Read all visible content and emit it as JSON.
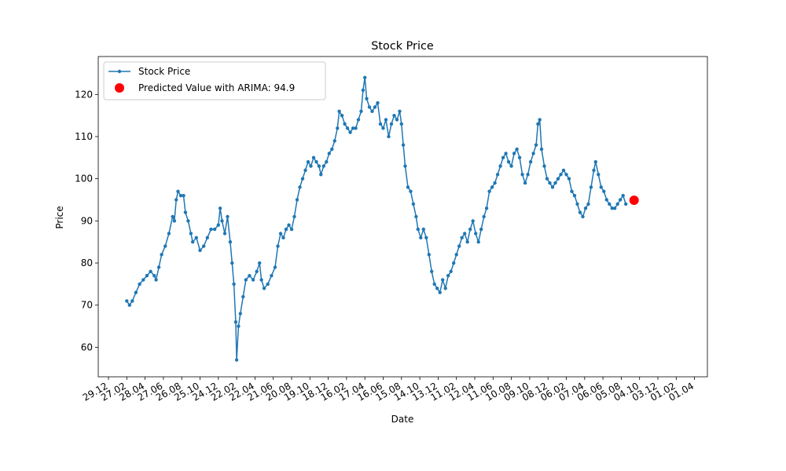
{
  "chart_data": {
    "type": "line",
    "title": "Stock Price",
    "xlabel": "Date",
    "ylabel": "Price",
    "ylim": [
      53,
      129
    ],
    "yticks": [
      60,
      70,
      80,
      90,
      100,
      110,
      120
    ],
    "xtick_labels": [
      "29.12",
      "27.02",
      "28.04",
      "27.06",
      "26.08",
      "25.10",
      "24.12",
      "22.02",
      "22.04",
      "21.06",
      "20.08",
      "19.10",
      "18.12",
      "16.02",
      "17.04",
      "16.06",
      "15.08",
      "14.10",
      "13.12",
      "11.02",
      "12.04",
      "11.06",
      "10.08",
      "09.10",
      "08.12",
      "06.02",
      "07.04",
      "06.06",
      "05.08",
      "04.10",
      "03.12",
      "01.02",
      "01.04"
    ],
    "legend": {
      "placement": "top-left",
      "entries": [
        "Stock Price",
        "Predicted Value with ARIMA: 94.9"
      ]
    },
    "colors": {
      "series": "#1f77b4",
      "prediction": "#ff0000"
    },
    "series": [
      {
        "name": "Stock Price",
        "points": [
          [
            1.0,
            71
          ],
          [
            1.15,
            70
          ],
          [
            1.3,
            71
          ],
          [
            1.5,
            73
          ],
          [
            1.7,
            75
          ],
          [
            1.9,
            76
          ],
          [
            2.1,
            77
          ],
          [
            2.3,
            78
          ],
          [
            2.5,
            77
          ],
          [
            2.6,
            76
          ],
          [
            2.75,
            79
          ],
          [
            2.9,
            82
          ],
          [
            3.1,
            84
          ],
          [
            3.3,
            87
          ],
          [
            3.5,
            91
          ],
          [
            3.6,
            90
          ],
          [
            3.7,
            95
          ],
          [
            3.8,
            97
          ],
          [
            3.95,
            96
          ],
          [
            4.1,
            96
          ],
          [
            4.2,
            92
          ],
          [
            4.35,
            90
          ],
          [
            4.5,
            87
          ],
          [
            4.6,
            85
          ],
          [
            4.8,
            86
          ],
          [
            5.0,
            83
          ],
          [
            5.2,
            84
          ],
          [
            5.4,
            86
          ],
          [
            5.6,
            88
          ],
          [
            5.8,
            88
          ],
          [
            6.0,
            89
          ],
          [
            6.1,
            93
          ],
          [
            6.2,
            90
          ],
          [
            6.35,
            87
          ],
          [
            6.5,
            91
          ],
          [
            6.65,
            85
          ],
          [
            6.75,
            80
          ],
          [
            6.85,
            75
          ],
          [
            6.95,
            66
          ],
          [
            7.0,
            57
          ],
          [
            7.1,
            65
          ],
          [
            7.2,
            68
          ],
          [
            7.35,
            72
          ],
          [
            7.5,
            76
          ],
          [
            7.7,
            77
          ],
          [
            7.9,
            76
          ],
          [
            8.1,
            78
          ],
          [
            8.25,
            80
          ],
          [
            8.35,
            76
          ],
          [
            8.5,
            74
          ],
          [
            8.7,
            75
          ],
          [
            8.9,
            77
          ],
          [
            9.1,
            79
          ],
          [
            9.25,
            84
          ],
          [
            9.4,
            87
          ],
          [
            9.55,
            86
          ],
          [
            9.7,
            88
          ],
          [
            9.85,
            89
          ],
          [
            10.0,
            88
          ],
          [
            10.15,
            91
          ],
          [
            10.3,
            95
          ],
          [
            10.45,
            98
          ],
          [
            10.6,
            100
          ],
          [
            10.75,
            102
          ],
          [
            10.9,
            104
          ],
          [
            11.05,
            103
          ],
          [
            11.2,
            105
          ],
          [
            11.35,
            104
          ],
          [
            11.5,
            103
          ],
          [
            11.6,
            101
          ],
          [
            11.75,
            103
          ],
          [
            11.9,
            104
          ],
          [
            12.05,
            106
          ],
          [
            12.2,
            107
          ],
          [
            12.35,
            109
          ],
          [
            12.5,
            112
          ],
          [
            12.6,
            116
          ],
          [
            12.75,
            115
          ],
          [
            12.9,
            113
          ],
          [
            13.05,
            112
          ],
          [
            13.2,
            111
          ],
          [
            13.35,
            112
          ],
          [
            13.5,
            112
          ],
          [
            13.65,
            114
          ],
          [
            13.8,
            116
          ],
          [
            13.9,
            121
          ],
          [
            14.0,
            124
          ],
          [
            14.1,
            119
          ],
          [
            14.25,
            117
          ],
          [
            14.4,
            116
          ],
          [
            14.55,
            117
          ],
          [
            14.7,
            118
          ],
          [
            14.85,
            113
          ],
          [
            15.0,
            112
          ],
          [
            15.15,
            114
          ],
          [
            15.3,
            110
          ],
          [
            15.45,
            113
          ],
          [
            15.6,
            115
          ],
          [
            15.75,
            114
          ],
          [
            15.9,
            116
          ],
          [
            16.0,
            113
          ],
          [
            16.1,
            108
          ],
          [
            16.2,
            103
          ],
          [
            16.35,
            98
          ],
          [
            16.5,
            97
          ],
          [
            16.65,
            94
          ],
          [
            16.8,
            91
          ],
          [
            16.9,
            88
          ],
          [
            17.05,
            86
          ],
          [
            17.2,
            88
          ],
          [
            17.35,
            86
          ],
          [
            17.5,
            82
          ],
          [
            17.65,
            78
          ],
          [
            17.8,
            75
          ],
          [
            17.95,
            74
          ],
          [
            18.1,
            73
          ],
          [
            18.25,
            76
          ],
          [
            18.4,
            74
          ],
          [
            18.55,
            77
          ],
          [
            18.7,
            78
          ],
          [
            18.85,
            80
          ],
          [
            19.0,
            82
          ],
          [
            19.15,
            84
          ],
          [
            19.3,
            86
          ],
          [
            19.45,
            87
          ],
          [
            19.6,
            85
          ],
          [
            19.75,
            88
          ],
          [
            19.9,
            90
          ],
          [
            20.05,
            87
          ],
          [
            20.2,
            85
          ],
          [
            20.35,
            88
          ],
          [
            20.5,
            91
          ],
          [
            20.65,
            93
          ],
          [
            20.8,
            97
          ],
          [
            20.95,
            98
          ],
          [
            21.1,
            99
          ],
          [
            21.25,
            101
          ],
          [
            21.4,
            103
          ],
          [
            21.55,
            105
          ],
          [
            21.7,
            106
          ],
          [
            21.85,
            104
          ],
          [
            22.0,
            103
          ],
          [
            22.15,
            106
          ],
          [
            22.3,
            107
          ],
          [
            22.45,
            105
          ],
          [
            22.6,
            101
          ],
          [
            22.75,
            99
          ],
          [
            22.9,
            101
          ],
          [
            23.05,
            104
          ],
          [
            23.2,
            106
          ],
          [
            23.35,
            108
          ],
          [
            23.45,
            113
          ],
          [
            23.55,
            114
          ],
          [
            23.65,
            107
          ],
          [
            23.8,
            103
          ],
          [
            23.95,
            100
          ],
          [
            24.1,
            99
          ],
          [
            24.25,
            98
          ],
          [
            24.4,
            99
          ],
          [
            24.55,
            100
          ],
          [
            24.7,
            101
          ],
          [
            24.85,
            102
          ],
          [
            25.0,
            101
          ],
          [
            25.15,
            100
          ],
          [
            25.3,
            97
          ],
          [
            25.45,
            96
          ],
          [
            25.6,
            94
          ],
          [
            25.75,
            92
          ],
          [
            25.9,
            91
          ],
          [
            26.05,
            93
          ],
          [
            26.2,
            94
          ],
          [
            26.35,
            98
          ],
          [
            26.5,
            102
          ],
          [
            26.6,
            104
          ],
          [
            26.75,
            101
          ],
          [
            26.9,
            98
          ],
          [
            27.05,
            97
          ],
          [
            27.2,
            95
          ],
          [
            27.35,
            94
          ],
          [
            27.5,
            93
          ],
          [
            27.65,
            93
          ],
          [
            27.8,
            94
          ],
          [
            27.95,
            95
          ],
          [
            28.1,
            96
          ],
          [
            28.25,
            94
          ]
        ]
      }
    ],
    "prediction": {
      "label": "Predicted Value with ARIMA: 94.9",
      "x": 28.7,
      "value": 94.9
    }
  }
}
